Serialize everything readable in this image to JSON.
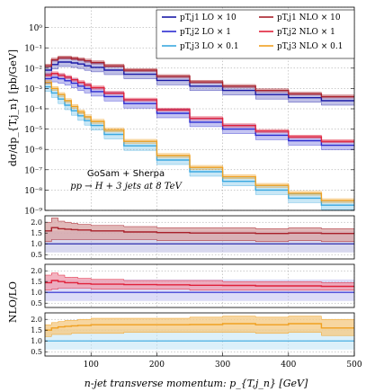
{
  "chart_data": {
    "type": "line",
    "plot_style": "histogram-step-with-uncertainty-bands",
    "xlabel": "n-jet transverse momentum: p_{T,j_n} [GeV]",
    "ylabel": "dσ/dp_{T,j_n} [pb/GeV]",
    "ratio_ylabel": "NLO/LO",
    "annotation_lines": [
      "GoSam + Sherpa",
      "pp → H + 3 jets at 8 TeV"
    ],
    "xlim": [
      30,
      500
    ],
    "x_ticks": [
      100,
      200,
      300,
      400,
      500
    ],
    "ylim": [
      1e-09,
      10
    ],
    "yscale": "log",
    "y_tick_labels": [
      "10^{-9}",
      "10^{-8}",
      "10^{-7}",
      "10^{-6}",
      "10^{-5}",
      "10^{-4}",
      "10^{-3}",
      "10^{-2}",
      "10^{-1}",
      "10^{0}"
    ],
    "ratio_ylim": [
      0.3,
      2.3
    ],
    "ratio_ticks": [
      "0.5",
      "1.0",
      "1.5",
      "2.0"
    ],
    "grid": true,
    "legend_position": "top-right",
    "legend": [
      {
        "label": "p_{T,j_1} LO × 10",
        "color": "#1a1aa6"
      },
      {
        "label": "p_{T,j_1} NLO × 10",
        "color": "#a8202a"
      },
      {
        "label": "p_{T,j_2} LO × 1",
        "color": "#2a2ad0"
      },
      {
        "label": "p_{T,j_2} NLO × 1",
        "color": "#e0203a"
      },
      {
        "label": "p_{T,j_3} LO × 0.1",
        "color": "#3aa8e0"
      },
      {
        "label": "p_{T,j_3} NLO × 0.1",
        "color": "#f0a020"
      }
    ],
    "series": [
      {
        "name": "p_{T,j_1} LO × 10",
        "color": "#1a1aa6",
        "band": [
          0.6,
          1.6
        ],
        "x": [
          30,
          40,
          50,
          60,
          70,
          80,
          90,
          100,
          120,
          150,
          200,
          250,
          300,
          350,
          400,
          450,
          500
        ],
        "y": [
          0.008,
          0.015,
          0.02,
          0.02,
          0.018,
          0.016,
          0.013,
          0.011,
          0.008,
          0.005,
          0.0025,
          0.0013,
          0.0008,
          0.0005,
          0.00035,
          0.00025,
          0.00018
        ]
      },
      {
        "name": "p_{T,j_1} NLO × 10",
        "color": "#a8202a",
        "band": [
          0.85,
          1.2
        ],
        "x": [
          30,
          40,
          50,
          60,
          70,
          80,
          90,
          100,
          120,
          150,
          200,
          250,
          300,
          350,
          400,
          450,
          500
        ],
        "y": [
          0.013,
          0.026,
          0.033,
          0.033,
          0.03,
          0.027,
          0.023,
          0.019,
          0.013,
          0.008,
          0.004,
          0.0021,
          0.0013,
          0.0008,
          0.00055,
          0.0004,
          0.00028
        ]
      },
      {
        "name": "p_{T,j_2} LO × 1",
        "color": "#2a2ad0",
        "band": [
          0.6,
          1.6
        ],
        "x": [
          30,
          40,
          50,
          60,
          70,
          80,
          90,
          100,
          120,
          150,
          200,
          250,
          300,
          350,
          400,
          450,
          500
        ],
        "y": [
          0.003,
          0.0035,
          0.003,
          0.0024,
          0.0018,
          0.0013,
          0.001,
          0.0007,
          0.0004,
          0.00018,
          6e-05,
          2.2e-05,
          1e-05,
          5e-06,
          2.7e-06,
          1.6e-06,
          1e-06
        ]
      },
      {
        "name": "p_{T,j_2} NLO × 1",
        "color": "#e0203a",
        "band": [
          0.85,
          1.2
        ],
        "x": [
          30,
          40,
          50,
          60,
          70,
          80,
          90,
          100,
          120,
          150,
          200,
          250,
          300,
          350,
          400,
          450,
          500
        ],
        "y": [
          0.0045,
          0.0055,
          0.0045,
          0.0036,
          0.0027,
          0.002,
          0.0015,
          0.0011,
          0.0006,
          0.00028,
          9e-05,
          3.4e-05,
          1.5e-05,
          8e-06,
          4.2e-06,
          2.5e-06,
          1.6e-06
        ]
      },
      {
        "name": "p_{T,j_3} LO × 0.1",
        "color": "#3aa8e0",
        "band": [
          0.6,
          1.6
        ],
        "x": [
          30,
          40,
          50,
          60,
          70,
          80,
          90,
          100,
          120,
          150,
          200,
          250,
          300,
          350,
          400,
          450,
          500
        ],
        "y": [
          0.0012,
          0.0006,
          0.0003,
          0.00015,
          8e-05,
          4.5e-05,
          2.6e-05,
          1.5e-05,
          5.5e-06,
          1.5e-06,
          3e-07,
          8e-08,
          2.7e-08,
          1e-08,
          4e-09,
          1.8e-09,
          9e-10
        ]
      },
      {
        "name": "p_{T,j_3} NLO × 0.1",
        "color": "#f0a020",
        "band": [
          0.8,
          1.25
        ],
        "x": [
          30,
          40,
          50,
          60,
          70,
          80,
          90,
          100,
          120,
          150,
          200,
          250,
          300,
          350,
          400,
          450,
          500
        ],
        "y": [
          0.002,
          0.001,
          0.0005,
          0.00025,
          0.00013,
          7e-05,
          4e-05,
          2.4e-05,
          9e-06,
          2.5e-06,
          5e-07,
          1.3e-07,
          4.5e-08,
          1.7e-08,
          7e-09,
          3e-09,
          1.5e-09
        ]
      }
    ],
    "ratios": [
      {
        "name": "j1 NLO/LO",
        "color": "#a8202a",
        "fill": "#d9a8a8",
        "x": [
          30,
          40,
          50,
          60,
          70,
          80,
          100,
          150,
          200,
          250,
          300,
          350,
          400,
          450,
          500
        ],
        "y": [
          1.6,
          1.75,
          1.7,
          1.68,
          1.66,
          1.64,
          1.6,
          1.55,
          1.52,
          1.5,
          1.5,
          1.48,
          1.5,
          1.48,
          1.5
        ],
        "lo": [
          1.1,
          1.2,
          1.2,
          1.2,
          1.2,
          1.2,
          1.2,
          1.2,
          1.15,
          1.15,
          1.15,
          1.1,
          1.15,
          1.1,
          1.1
        ],
        "hi": [
          2.0,
          2.2,
          2.05,
          2.0,
          1.95,
          1.9,
          1.85,
          1.8,
          1.75,
          1.75,
          1.75,
          1.7,
          1.75,
          1.7,
          1.75
        ]
      },
      {
        "name": "j2 NLO/LO",
        "color": "#e0203a",
        "fill": "#f0a0b0",
        "x": [
          30,
          40,
          50,
          60,
          70,
          80,
          100,
          150,
          200,
          250,
          300,
          350,
          400,
          450,
          500
        ],
        "y": [
          1.45,
          1.55,
          1.5,
          1.45,
          1.45,
          1.4,
          1.38,
          1.36,
          1.35,
          1.33,
          1.32,
          1.3,
          1.3,
          1.28,
          1.3
        ],
        "lo": [
          1.1,
          1.15,
          1.2,
          1.2,
          1.2,
          1.2,
          1.15,
          1.15,
          1.15,
          1.1,
          1.1,
          1.1,
          1.1,
          1.1,
          1.1
        ],
        "hi": [
          1.8,
          1.9,
          1.8,
          1.7,
          1.7,
          1.65,
          1.6,
          1.55,
          1.55,
          1.55,
          1.5,
          1.5,
          1.5,
          1.45,
          1.5
        ]
      },
      {
        "name": "j3 NLO/LO",
        "color": "#f0a020",
        "fill": "#f5cc88",
        "x": [
          30,
          40,
          50,
          60,
          70,
          80,
          100,
          150,
          200,
          250,
          300,
          350,
          400,
          450,
          500
        ],
        "y": [
          1.5,
          1.6,
          1.65,
          1.68,
          1.7,
          1.72,
          1.75,
          1.75,
          1.75,
          1.76,
          1.8,
          1.75,
          1.8,
          1.6,
          1.85
        ],
        "lo": [
          1.2,
          1.3,
          1.3,
          1.3,
          1.35,
          1.35,
          1.35,
          1.4,
          1.4,
          1.4,
          1.4,
          1.35,
          1.4,
          1.25,
          1.4
        ],
        "hi": [
          1.75,
          1.85,
          1.9,
          1.95,
          1.95,
          2.0,
          2.05,
          2.05,
          2.05,
          2.1,
          2.15,
          2.1,
          2.15,
          2.0,
          2.3
        ]
      }
    ],
    "lo_ratio_band": [
      {
        "color": "#1a1aa6",
        "fill": "#b8b8e0"
      },
      {
        "color": "#2a2ad0",
        "fill": "#c0c0f0"
      },
      {
        "color": "#3aa8e0",
        "fill": "#bfe3f5"
      }
    ]
  }
}
